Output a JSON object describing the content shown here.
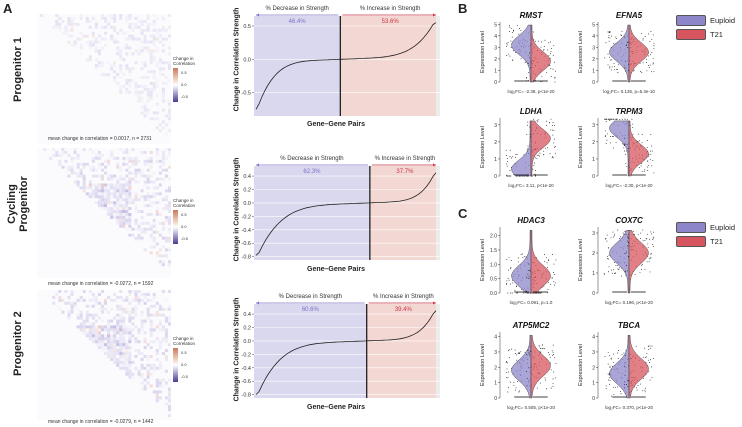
{
  "panels": {
    "a": "A",
    "b": "B",
    "c": "C"
  },
  "colors": {
    "decrease_bg": "#d9d8ef",
    "increase_bg": "#f3d7d3",
    "decrease_text": "#7b71c9",
    "increase_text": "#cc3344",
    "euploid": "#8d87c9",
    "t21": "#d7555f"
  },
  "row_labels": [
    [
      "Progenitor 1"
    ],
    [
      "Cycling",
      "Progenitor"
    ],
    [
      "Progenitor 2"
    ]
  ],
  "heatmap_legend": {
    "title": "Change in Correlation",
    "ticks": [
      "0.5",
      "0.0",
      "-0.5"
    ]
  },
  "heatmap_captions": [
    "mean change in correlation = 0.0017, n = 2731",
    "mean change in correlation = -0.0272, n = 1592",
    "mean change in correlation = -0.0279, n = 1442"
  ],
  "panel_a_axis": {
    "ylabel": "Change in Correlation Strength",
    "xlabel": "Gene–Gene Pairs",
    "decrease_label": "% Decrease in Strength",
    "increase_label": "% Increase in Strength"
  },
  "chart_data": [
    {
      "type": "line",
      "title": "Progenitor 1",
      "xlabel": "Gene–Gene Pairs",
      "ylabel": "Change in Correlation Strength",
      "ylim": [
        -0.85,
        0.65
      ],
      "yticks": [
        "0.5",
        "0.0",
        "-0.5"
      ],
      "ytick_values": [
        0.5,
        0.0,
        -0.5
      ],
      "decrease_pct": "46.4%",
      "increase_pct": "53.6%",
      "split_fraction": 0.464,
      "curve_min": -0.75,
      "curve_max": 0.55
    },
    {
      "type": "line",
      "title": "Cycling Progenitor",
      "xlabel": "Gene–Gene Pairs",
      "ylabel": "Change in Correlation Strength",
      "ylim": [
        -0.85,
        0.55
      ],
      "yticks": [
        "0.4",
        "0.2",
        "0.0",
        "-0.2",
        "-0.4",
        "-0.6",
        "-0.8"
      ],
      "ytick_values": [
        0.4,
        0.2,
        0.0,
        -0.2,
        -0.4,
        -0.6,
        -0.8
      ],
      "decrease_pct": "62.3%",
      "increase_pct": "37.7%",
      "split_fraction": 0.623,
      "curve_min": -0.78,
      "curve_max": 0.45
    },
    {
      "type": "line",
      "title": "Progenitor 2",
      "xlabel": "Gene–Gene Pairs",
      "ylabel": "Change in Correlation Strength",
      "ylim": [
        -0.85,
        0.55
      ],
      "yticks": [
        "0.4",
        "0.2",
        "0.0",
        "-0.2",
        "-0.4",
        "-0.6",
        "-0.8"
      ],
      "ytick_values": [
        0.4,
        0.2,
        0.0,
        -0.2,
        -0.4,
        -0.6,
        -0.8
      ],
      "decrease_pct": "60.6%",
      "increase_pct": "39.4%",
      "split_fraction": 0.606,
      "curve_min": -0.8,
      "curve_max": 0.45
    }
  ],
  "violin_axis": {
    "ylabel": "Expression Level"
  },
  "legend": {
    "euploid": "Euploid",
    "t21": "T21"
  },
  "violins_b": [
    {
      "gene": "RMST",
      "stat": "log₂FC= -2.38, p<1e-20",
      "yticks": [
        "5",
        "4",
        "3",
        "2",
        "1",
        "0"
      ],
      "ymax": 5.2,
      "e_med": 3.2,
      "t_med": 1.8
    },
    {
      "gene": "EFNA5",
      "stat": "log₂FC= 0.135, p=5.3e-10",
      "yticks": [
        "5",
        "4",
        "3",
        "2",
        "1",
        "0"
      ],
      "ymax": 5.2,
      "e_med": 2.6,
      "t_med": 2.6
    },
    {
      "gene": "LDHA",
      "stat": "log₂FC= 3.11, p<1e-20",
      "yticks": [
        "3",
        "2",
        "1",
        "0"
      ],
      "ymax": 3.4,
      "e_med": 0.4,
      "t_med": 2.2
    },
    {
      "gene": "TRPM3",
      "stat": "log₂FC= -2.30, p<1e-20",
      "yticks": [
        "3",
        "2",
        "1",
        "0"
      ],
      "ymax": 3.4,
      "e_med": 2.8,
      "t_med": 1.3
    }
  ],
  "violins_c": [
    {
      "gene": "HDAC3",
      "stat": "log₂FC= 0.091, p=1.0",
      "yticks": [
        "2.0",
        "1.5",
        "1.0",
        "0.5",
        "0.0"
      ],
      "ymax": 2.3,
      "e_med": 0.6,
      "t_med": 0.6
    },
    {
      "gene": "COX7C",
      "stat": "log₂FC= 0.196, p<1e-20",
      "yticks": [
        "3",
        "2",
        "1",
        "0"
      ],
      "ymax": 3.3,
      "e_med": 2.0,
      "t_med": 2.0
    },
    {
      "gene": "ATP5MC2",
      "stat": "log₂FC= 0.505, p<1e-20",
      "yticks": [
        "4",
        "3",
        "2",
        "1",
        "0"
      ],
      "ymax": 4.3,
      "e_med": 1.8,
      "t_med": 2.1
    },
    {
      "gene": "TBCA",
      "stat": "log₂FC= 0.370, p<1e-20",
      "yticks": [
        "4",
        "3",
        "2",
        "1",
        "0"
      ],
      "ymax": 4.3,
      "e_med": 1.6,
      "t_med": 1.9
    }
  ]
}
